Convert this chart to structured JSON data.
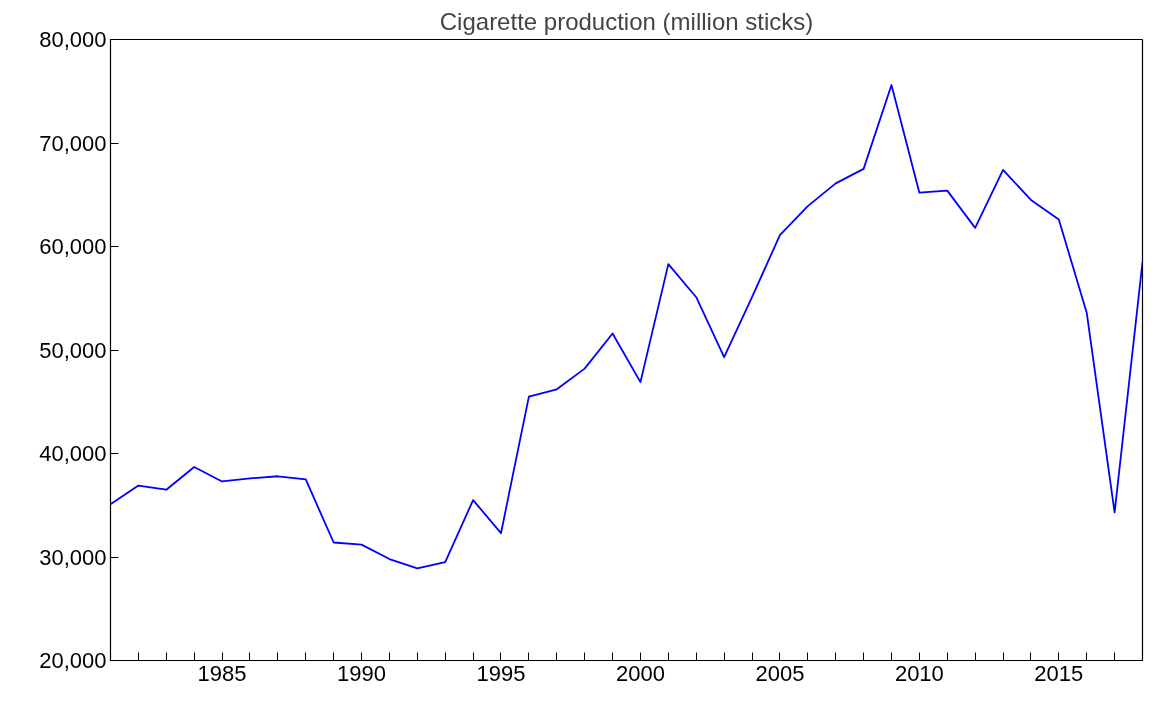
{
  "chart_data": {
    "type": "line",
    "title": "Cigarette production (million sticks)",
    "x": [
      1981,
      1982,
      1983,
      1984,
      1985,
      1986,
      1987,
      1988,
      1989,
      1990,
      1991,
      1992,
      1993,
      1994,
      1995,
      1996,
      1997,
      1998,
      1999,
      2000,
      2001,
      2002,
      2003,
      2004,
      2005,
      2006,
      2007,
      2008,
      2009,
      2010,
      2011,
      2012,
      2013,
      2014,
      2015,
      2016,
      2017,
      2018
    ],
    "series": [
      {
        "color": "#0000ff",
        "values": [
          35100,
          36900,
          36500,
          38700,
          37300,
          37600,
          37800,
          37500,
          31400,
          31200,
          29800,
          28900,
          29500,
          35500,
          32300,
          45500,
          46200,
          48200,
          51600,
          46900,
          58300,
          55100,
          49300,
          55100,
          61100,
          63900,
          66100,
          67500,
          75600,
          65200,
          65400,
          61800,
          67400,
          64500,
          62600,
          53600,
          34300,
          58500
        ]
      }
    ],
    "xlim": [
      1981,
      2018
    ],
    "ylim": [
      20000,
      80000
    ],
    "xticks": [
      {
        "value": 1981,
        "label": null
      },
      {
        "value": 1982,
        "label": null
      },
      {
        "value": 1983,
        "label": null
      },
      {
        "value": 1984,
        "label": null
      },
      1985,
      {
        "value": 1986,
        "label": null
      },
      {
        "value": 1987,
        "label": null
      },
      {
        "value": 1988,
        "label": null
      },
      {
        "value": 1989,
        "label": null
      },
      1990,
      {
        "value": 1991,
        "label": null
      },
      {
        "value": 1992,
        "label": null
      },
      {
        "value": 1993,
        "label": null
      },
      {
        "value": 1994,
        "label": null
      },
      1995,
      {
        "value": 1996,
        "label": null
      },
      {
        "value": 1997,
        "label": null
      },
      {
        "value": 1998,
        "label": null
      },
      {
        "value": 1999,
        "label": null
      },
      2000,
      {
        "value": 2001,
        "label": null
      },
      {
        "value": 2002,
        "label": null
      },
      {
        "value": 2003,
        "label": null
      },
      {
        "value": 2004,
        "label": null
      },
      2005,
      {
        "value": 2006,
        "label": null
      },
      {
        "value": 2007,
        "label": null
      },
      {
        "value": 2008,
        "label": null
      },
      {
        "value": 2009,
        "label": null
      },
      2010,
      {
        "value": 2011,
        "label": null
      },
      {
        "value": 2012,
        "label": null
      },
      {
        "value": 2013,
        "label": null
      },
      {
        "value": 2014,
        "label": null
      },
      2015,
      {
        "value": 2016,
        "label": null
      },
      {
        "value": 2017,
        "label": null
      },
      {
        "value": 2018,
        "label": null
      }
    ],
    "yticks": [
      {
        "value": 20000,
        "label": "20,000"
      },
      {
        "value": 30000,
        "label": "30,000"
      },
      {
        "value": 40000,
        "label": "40,000"
      },
      {
        "value": 50000,
        "label": "50,000"
      },
      {
        "value": 60000,
        "label": "60,000"
      },
      {
        "value": 70000,
        "label": "70,000"
      },
      {
        "value": 80000,
        "label": "80,000"
      }
    ]
  }
}
